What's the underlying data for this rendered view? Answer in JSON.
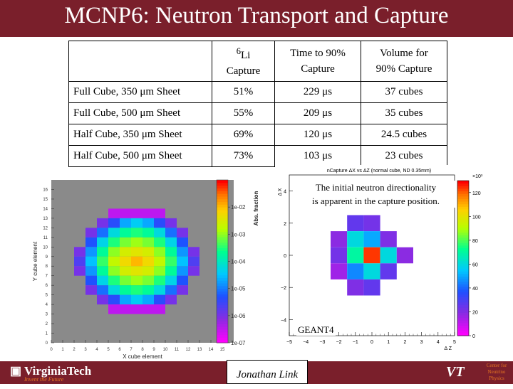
{
  "title": "MCNP6: Neutron Transport and Capture",
  "table": {
    "headers": [
      {
        "sup": "6",
        "main": "Li",
        "line2": "Capture"
      },
      {
        "line1": "Time to 90%",
        "line2": "Capture"
      },
      {
        "line1": "Volume for",
        "line2": "90% Capture"
      }
    ],
    "rows": [
      {
        "label": "Full Cube, 350 μm Sheet",
        "li": "51%",
        "time": "229 μs",
        "volume": "37 cubes"
      },
      {
        "label": "Full Cube, 500 μm Sheet",
        "li": "55%",
        "time": "209 μs",
        "volume": "35 cubes"
      },
      {
        "label": "Half Cube, 350 μm Sheet",
        "li": "69%",
        "time": "120 μs",
        "volume": "24.5 cubes"
      },
      {
        "label": "Half Cube, 500 μm Sheet",
        "li": "73%",
        "time": "103 μs",
        "volume": "23 cubes"
      }
    ]
  },
  "left_plot": {
    "xlabel": "X cube element",
    "ylabel": "Y cube element",
    "colorbar_label": "Abs. fraction",
    "x_ticks": [
      "0",
      "1",
      "2",
      "3",
      "4",
      "5",
      "6",
      "7",
      "8",
      "9",
      "10",
      "11",
      "12",
      "13",
      "14",
      "15"
    ],
    "y_ticks": [
      "0",
      "1",
      "2",
      "3",
      "4",
      "5",
      "6",
      "7",
      "8",
      "9",
      "10",
      "11",
      "12",
      "13",
      "14",
      "15",
      "16"
    ],
    "colorbar_ticks": [
      "1e-02",
      "1e-03",
      "1e-04",
      "1e-05",
      "1e-06",
      "1e-07"
    ],
    "colors": {
      "background": "#8a8a8a"
    }
  },
  "right_plot": {
    "title": "nCapture ΔX vs ΔZ (normal cube, ND 0.35mm)",
    "xlabel": "Δ Z",
    "ylabel": "Δ X",
    "x_ticks": [
      "−5",
      "−4",
      "−3",
      "−2",
      "−1",
      "0",
      "1",
      "2",
      "3",
      "4",
      "5"
    ],
    "y_ticks": [
      "4",
      "2",
      "0",
      "−2",
      "−4"
    ],
    "colorbar_ticks": [
      "120",
      "100",
      "80",
      "60",
      "40",
      "20",
      "0"
    ],
    "colorbar_exp": "×10³"
  },
  "callout": {
    "line1": "The initial neutron directionality",
    "line2": "is apparent in the capture position."
  },
  "geant_label": "GEANT4",
  "footer": {
    "institution": "VirginiaTech",
    "tagline": "Invent the Future",
    "author": "Jonathan Link",
    "vt_mark": "VT",
    "center_line1": "Center for",
    "center_line2": "Neutrino",
    "center_line3": "Physics",
    "bar_color": "#7a1f2b"
  },
  "chart_data": [
    {
      "type": "heatmap",
      "title": "",
      "xlabel": "X cube element",
      "ylabel": "Y cube element",
      "xlim": [
        0,
        16
      ],
      "ylim": [
        0,
        17
      ],
      "colorscale": "log",
      "colorbar_range": [
        1e-07,
        0.1
      ],
      "cells": [
        {
          "x": 5,
          "y": 13,
          "v": 3e-07
        },
        {
          "x": 6,
          "y": 13,
          "v": 3e-07
        },
        {
          "x": 7,
          "y": 13,
          "v": 3e-07
        },
        {
          "x": 8,
          "y": 13,
          "v": 3e-07
        },
        {
          "x": 9,
          "y": 13,
          "v": 3e-07
        },
        {
          "x": 4,
          "y": 12,
          "v": 1e-06
        },
        {
          "x": 5,
          "y": 12,
          "v": 4e-06
        },
        {
          "x": 6,
          "y": 12,
          "v": 2e-05
        },
        {
          "x": 7,
          "y": 12,
          "v": 4e-05
        },
        {
          "x": 8,
          "y": 12,
          "v": 2e-05
        },
        {
          "x": 9,
          "y": 12,
          "v": 4e-06
        },
        {
          "x": 10,
          "y": 12,
          "v": 1e-06
        },
        {
          "x": 3,
          "y": 11,
          "v": 1e-06
        },
        {
          "x": 4,
          "y": 11,
          "v": 8e-06
        },
        {
          "x": 5,
          "y": 11,
          "v": 6e-05
        },
        {
          "x": 6,
          "y": 11,
          "v": 0.0002
        },
        {
          "x": 7,
          "y": 11,
          "v": 0.0003
        },
        {
          "x": 8,
          "y": 11,
          "v": 0.0002
        },
        {
          "x": 9,
          "y": 11,
          "v": 6e-05
        },
        {
          "x": 10,
          "y": 11,
          "v": 8e-06
        },
        {
          "x": 11,
          "y": 11,
          "v": 1e-06
        },
        {
          "x": 3,
          "y": 10,
          "v": 5e-06
        },
        {
          "x": 4,
          "y": 10,
          "v": 5e-05
        },
        {
          "x": 5,
          "y": 10,
          "v": 0.0003
        },
        {
          "x": 6,
          "y": 10,
          "v": 0.0008
        },
        {
          "x": 7,
          "y": 10,
          "v": 0.0012
        },
        {
          "x": 8,
          "y": 10,
          "v": 0.0008
        },
        {
          "x": 9,
          "y": 10,
          "v": 0.0003
        },
        {
          "x": 10,
          "y": 10,
          "v": 5e-05
        },
        {
          "x": 11,
          "y": 10,
          "v": 5e-06
        },
        {
          "x": 2,
          "y": 9,
          "v": 1e-06
        },
        {
          "x": 3,
          "y": 9,
          "v": 1.5e-05
        },
        {
          "x": 4,
          "y": 9,
          "v": 0.0002
        },
        {
          "x": 5,
          "y": 9,
          "v": 0.001
        },
        {
          "x": 6,
          "y": 9,
          "v": 0.003
        },
        {
          "x": 7,
          "y": 9,
          "v": 0.004
        },
        {
          "x": 8,
          "y": 9,
          "v": 0.003
        },
        {
          "x": 9,
          "y": 9,
          "v": 0.001
        },
        {
          "x": 10,
          "y": 9,
          "v": 0.0002
        },
        {
          "x": 11,
          "y": 9,
          "v": 1.5e-05
        },
        {
          "x": 12,
          "y": 9,
          "v": 1e-06
        },
        {
          "x": 2,
          "y": 8,
          "v": 2e-06
        },
        {
          "x": 3,
          "y": 8,
          "v": 3e-05
        },
        {
          "x": 4,
          "y": 8,
          "v": 0.0004
        },
        {
          "x": 5,
          "y": 8,
          "v": 0.002
        },
        {
          "x": 6,
          "y": 8,
          "v": 0.006
        },
        {
          "x": 7,
          "y": 8,
          "v": 0.012
        },
        {
          "x": 8,
          "y": 8,
          "v": 0.006
        },
        {
          "x": 9,
          "y": 8,
          "v": 0.002
        },
        {
          "x": 10,
          "y": 8,
          "v": 0.0004
        },
        {
          "x": 11,
          "y": 8,
          "v": 3e-05
        },
        {
          "x": 12,
          "y": 8,
          "v": 2e-06
        },
        {
          "x": 2,
          "y": 7,
          "v": 1e-06
        },
        {
          "x": 3,
          "y": 7,
          "v": 1.5e-05
        },
        {
          "x": 4,
          "y": 7,
          "v": 0.0002
        },
        {
          "x": 5,
          "y": 7,
          "v": 0.001
        },
        {
          "x": 6,
          "y": 7,
          "v": 0.003
        },
        {
          "x": 7,
          "y": 7,
          "v": 0.004
        },
        {
          "x": 8,
          "y": 7,
          "v": 0.003
        },
        {
          "x": 9,
          "y": 7,
          "v": 0.001
        },
        {
          "x": 10,
          "y": 7,
          "v": 0.0002
        },
        {
          "x": 11,
          "y": 7,
          "v": 1.5e-05
        },
        {
          "x": 12,
          "y": 7,
          "v": 1e-06
        },
        {
          "x": 3,
          "y": 6,
          "v": 5e-06
        },
        {
          "x": 4,
          "y": 6,
          "v": 5e-05
        },
        {
          "x": 5,
          "y": 6,
          "v": 0.0003
        },
        {
          "x": 6,
          "y": 6,
          "v": 0.0008
        },
        {
          "x": 7,
          "y": 6,
          "v": 0.0012
        },
        {
          "x": 8,
          "y": 6,
          "v": 0.0008
        },
        {
          "x": 9,
          "y": 6,
          "v": 0.0003
        },
        {
          "x": 10,
          "y": 6,
          "v": 5e-05
        },
        {
          "x": 11,
          "y": 6,
          "v": 5e-06
        },
        {
          "x": 3,
          "y": 5,
          "v": 1e-06
        },
        {
          "x": 4,
          "y": 5,
          "v": 8e-06
        },
        {
          "x": 5,
          "y": 5,
          "v": 6e-05
        },
        {
          "x": 6,
          "y": 5,
          "v": 0.0002
        },
        {
          "x": 7,
          "y": 5,
          "v": 0.0003
        },
        {
          "x": 8,
          "y": 5,
          "v": 0.0002
        },
        {
          "x": 9,
          "y": 5,
          "v": 6e-05
        },
        {
          "x": 10,
          "y": 5,
          "v": 8e-06
        },
        {
          "x": 11,
          "y": 5,
          "v": 1e-06
        },
        {
          "x": 4,
          "y": 4,
          "v": 1e-06
        },
        {
          "x": 5,
          "y": 4,
          "v": 4e-06
        },
        {
          "x": 6,
          "y": 4,
          "v": 2e-05
        },
        {
          "x": 7,
          "y": 4,
          "v": 4e-05
        },
        {
          "x": 8,
          "y": 4,
          "v": 2e-05
        },
        {
          "x": 9,
          "y": 4,
          "v": 4e-06
        },
        {
          "x": 10,
          "y": 4,
          "v": 1e-06
        },
        {
          "x": 5,
          "y": 3,
          "v": 3e-07
        },
        {
          "x": 6,
          "y": 3,
          "v": 3e-07
        },
        {
          "x": 7,
          "y": 3,
          "v": 3e-07
        },
        {
          "x": 8,
          "y": 3,
          "v": 3e-07
        },
        {
          "x": 9,
          "y": 3,
          "v": 3e-07
        }
      ]
    },
    {
      "type": "heatmap",
      "title": "nCapture ΔX vs ΔZ (normal cube, ND 0.35mm)",
      "xlabel": "Δ Z",
      "ylabel": "Δ X",
      "xlim": [
        -5,
        5
      ],
      "ylim": [
        -5,
        5
      ],
      "colorbar_range": [
        0,
        130
      ],
      "colorbar_units": "×10³",
      "cells": [
        {
          "z": -1,
          "x": 2,
          "v": 25
        },
        {
          "z": 0,
          "x": 2,
          "v": 22
        },
        {
          "z": -2,
          "x": 1,
          "v": 18
        },
        {
          "z": -1,
          "x": 1,
          "v": 60
        },
        {
          "z": 0,
          "x": 1,
          "v": 50
        },
        {
          "z": 1,
          "x": 1,
          "v": 20
        },
        {
          "z": -2,
          "x": 0,
          "v": 22
        },
        {
          "z": -1,
          "x": 0,
          "v": 70
        },
        {
          "z": 0,
          "x": 0,
          "v": 125
        },
        {
          "z": 1,
          "x": 0,
          "v": 60
        },
        {
          "z": 2,
          "x": 0,
          "v": 18
        },
        {
          "z": -2,
          "x": -1,
          "v": 15
        },
        {
          "z": -1,
          "x": -1,
          "v": 45
        },
        {
          "z": 0,
          "x": -1,
          "v": 60
        },
        {
          "z": 1,
          "x": -1,
          "v": 25
        },
        {
          "z": -1,
          "x": -2,
          "v": 20
        },
        {
          "z": 0,
          "x": -2,
          "v": 25
        }
      ]
    }
  ]
}
